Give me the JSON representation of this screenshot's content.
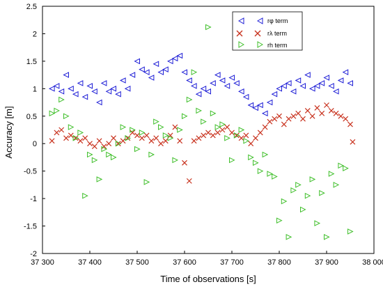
{
  "chart_data": {
    "type": "scatter",
    "xlabel": "Time of observations [s]",
    "ylabel": "Accuracy [m]",
    "xlim": [
      37300,
      38000
    ],
    "ylim": [
      -2,
      2.5
    ],
    "x_ticks": [
      37300,
      37400,
      37500,
      37600,
      37700,
      37800,
      37900,
      38000
    ],
    "x_tick_labels": [
      "37 300",
      "37 400",
      "37 500",
      "37 600",
      "37 700",
      "37 800",
      "37 900",
      "38 000"
    ],
    "y_ticks": [
      -2,
      -1.5,
      -1,
      -0.5,
      0,
      0.5,
      1,
      1.5,
      2,
      2.5
    ],
    "y_tick_labels": [
      "-2",
      "-1.5",
      "-1",
      "-0.5",
      "0",
      "0.5",
      "1",
      "1.5",
      "2",
      "2.5"
    ],
    "grid": false,
    "legend_position": "top-right",
    "series": [
      {
        "name": "rφ term",
        "marker": "triangle-left",
        "color": "#1c1cd6",
        "x": [
          37320,
          37330,
          37340,
          37350,
          37360,
          37370,
          37380,
          37390,
          37400,
          37410,
          37420,
          37430,
          37440,
          37450,
          37460,
          37470,
          37480,
          37490,
          37500,
          37510,
          37520,
          37530,
          37540,
          37550,
          37560,
          37570,
          37580,
          37590,
          37600,
          37610,
          37620,
          37630,
          37640,
          37650,
          37660,
          37670,
          37680,
          37690,
          37700,
          37710,
          37720,
          37730,
          37740,
          37750,
          37760,
          37770,
          37780,
          37790,
          37800,
          37810,
          37820,
          37830,
          37840,
          37850,
          37860,
          37870,
          37880,
          37890,
          37900,
          37910,
          37920,
          37930,
          37940,
          37950
        ],
        "y": [
          1.0,
          1.05,
          0.95,
          1.25,
          1.0,
          0.9,
          1.1,
          0.85,
          1.05,
          0.95,
          0.75,
          1.1,
          0.95,
          1.0,
          0.9,
          1.15,
          1.0,
          1.25,
          1.5,
          1.35,
          1.3,
          1.2,
          1.45,
          1.3,
          1.35,
          1.5,
          1.55,
          1.6,
          1.3,
          1.15,
          1.05,
          0.9,
          1.0,
          0.95,
          1.1,
          1.25,
          1.15,
          1.05,
          1.2,
          1.1,
          0.95,
          0.85,
          0.7,
          0.65,
          0.7,
          0.55,
          0.75,
          0.9,
          1.0,
          1.05,
          1.1,
          0.95,
          1.15,
          1.05,
          1.25,
          1.0,
          1.05,
          1.1,
          1.2,
          1.05,
          0.95,
          1.15,
          1.3,
          1.1
        ]
      },
      {
        "name": "rλ term",
        "marker": "x",
        "color": "#c8321e",
        "x": [
          37320,
          37330,
          37340,
          37350,
          37360,
          37370,
          37380,
          37390,
          37400,
          37410,
          37420,
          37430,
          37440,
          37450,
          37460,
          37470,
          37480,
          37490,
          37500,
          37510,
          37520,
          37530,
          37540,
          37550,
          37560,
          37570,
          37580,
          37590,
          37600,
          37610,
          37620,
          37630,
          37640,
          37650,
          37660,
          37670,
          37680,
          37690,
          37700,
          37710,
          37720,
          37730,
          37740,
          37750,
          37760,
          37770,
          37780,
          37790,
          37800,
          37810,
          37820,
          37830,
          37840,
          37850,
          37860,
          37870,
          37880,
          37890,
          37900,
          37910,
          37920,
          37930,
          37940,
          37950,
          37955
        ],
        "y": [
          0.05,
          0.2,
          0.25,
          0.1,
          0.15,
          0.1,
          0.05,
          0.1,
          0.0,
          -0.05,
          0.05,
          -0.05,
          0.0,
          0.1,
          0.0,
          0.05,
          0.1,
          0.2,
          0.15,
          0.1,
          0.15,
          0.05,
          0.1,
          0.0,
          0.05,
          0.15,
          0.3,
          0.05,
          -0.35,
          -0.68,
          0.05,
          0.1,
          0.15,
          0.2,
          0.15,
          0.2,
          0.25,
          0.3,
          0.2,
          0.15,
          0.1,
          0.15,
          0.0,
          0.1,
          0.2,
          0.3,
          0.4,
          0.45,
          0.5,
          0.35,
          0.45,
          0.5,
          0.55,
          0.45,
          0.6,
          0.5,
          0.65,
          0.55,
          0.7,
          0.6,
          0.55,
          0.5,
          0.45,
          0.35,
          0.03
        ]
      },
      {
        "name": "rh term",
        "marker": "triangle-right",
        "color": "#3fbf2a",
        "x": [
          37320,
          37330,
          37340,
          37350,
          37360,
          37370,
          37380,
          37390,
          37400,
          37410,
          37420,
          37430,
          37440,
          37450,
          37460,
          37470,
          37480,
          37490,
          37500,
          37510,
          37520,
          37530,
          37540,
          37550,
          37560,
          37570,
          37580,
          37590,
          37600,
          37610,
          37620,
          37630,
          37640,
          37650,
          37660,
          37670,
          37680,
          37690,
          37700,
          37710,
          37720,
          37730,
          37740,
          37750,
          37760,
          37770,
          37780,
          37790,
          37800,
          37810,
          37820,
          37830,
          37840,
          37850,
          37860,
          37870,
          37880,
          37890,
          37900,
          37910,
          37920,
          37930,
          37940,
          37950
        ],
        "y": [
          0.55,
          0.6,
          0.8,
          0.5,
          0.3,
          0.1,
          0.2,
          -0.95,
          -0.2,
          -0.3,
          -0.65,
          -0.1,
          -0.2,
          -0.25,
          0.0,
          0.3,
          0.1,
          0.25,
          -0.1,
          0.2,
          -0.7,
          -0.2,
          0.4,
          0.3,
          0.15,
          0.1,
          -0.3,
          0.25,
          0.5,
          0.8,
          1.3,
          0.6,
          0.4,
          2.12,
          0.55,
          0.3,
          0.35,
          0.1,
          -0.3,
          0.15,
          0.25,
          0.05,
          -0.25,
          -0.35,
          -0.5,
          -0.2,
          -0.55,
          -0.6,
          -1.4,
          -1.05,
          -1.7,
          -0.85,
          -0.75,
          -1.2,
          -0.95,
          -0.65,
          -1.45,
          -0.9,
          -1.7,
          -0.55,
          -0.75,
          -0.4,
          -0.45,
          -1.6
        ]
      }
    ]
  }
}
